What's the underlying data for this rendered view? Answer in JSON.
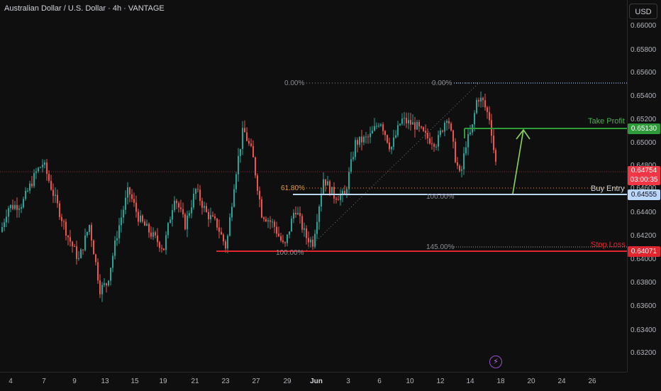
{
  "header": {
    "symbol_title": "Australian Dollar / U.S. Dollar · 4h · VANTAGE",
    "currency_label": "USD"
  },
  "price_axis": {
    "ticks": [
      "0.66000",
      "0.65800",
      "0.65600",
      "0.65400",
      "0.65200",
      "0.65000",
      "0.64800",
      "0.64600",
      "0.64400",
      "0.64200",
      "0.64000",
      "0.63800",
      "0.63600",
      "0.63400",
      "0.63200"
    ]
  },
  "time_axis": {
    "ticks": [
      "4",
      "7",
      "9",
      "13",
      "15",
      "19",
      "21",
      "23",
      "27",
      "29",
      "Jun",
      "3",
      "6",
      "10",
      "12",
      "14",
      "18",
      "20",
      "24",
      "26"
    ]
  },
  "levels": {
    "take_profit": {
      "label": "Take Profit",
      "price": "0.65130",
      "color": "#2e9b3a"
    },
    "buy_entry": {
      "label": "Buy Entry",
      "price": "0.64555",
      "color": "#bcd7ff"
    },
    "stop_loss": {
      "label": "Stop Loss",
      "price": "0.64071",
      "color": "#e0252e"
    },
    "current": {
      "price": "0.64754",
      "countdown": "03:00:35",
      "color": "#f23645"
    }
  },
  "fibonacci": {
    "left": {
      "top": "0.00%",
      "mid": "61.80%",
      "bottom": "100.00%"
    },
    "right": {
      "top": "0.00%",
      "mid": "100.00%",
      "bottom": "145.00%"
    }
  },
  "colors": {
    "bull": "#26a69a",
    "bear": "#ef5350",
    "arrow": "#8bd65a"
  },
  "icons": {
    "lightning": "lightning-icon"
  }
}
